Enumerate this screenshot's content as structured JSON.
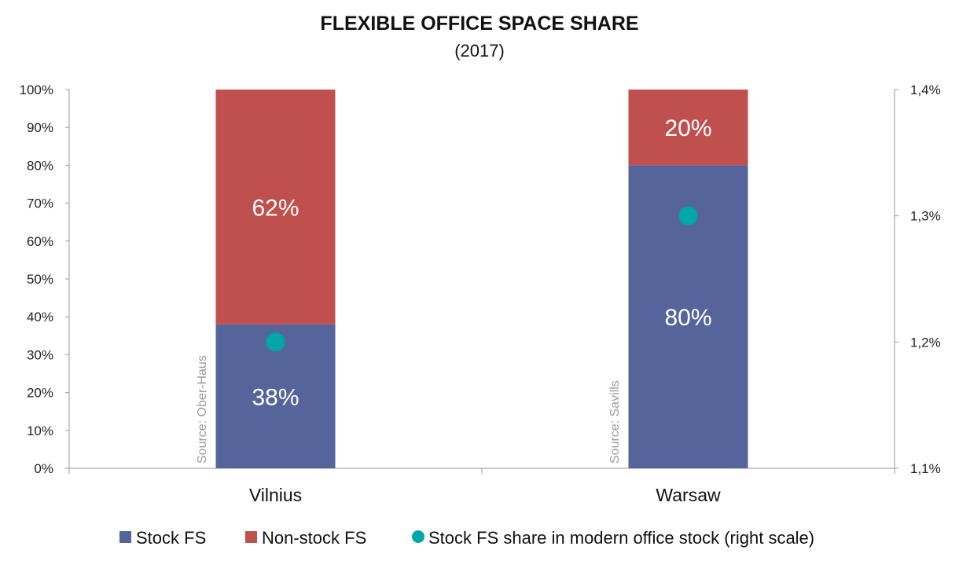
{
  "chart_data": {
    "type": "bar",
    "stacked": true,
    "title": "FLEXIBLE OFFICE SPACE SHARE",
    "subtitle": "(2017)",
    "categories": [
      "Vilnius",
      "Warsaw"
    ],
    "series": [
      {
        "name": "Stock FS",
        "values": [
          38,
          80
        ],
        "labels": [
          "38%",
          "80%"
        ],
        "color": "#55659c"
      },
      {
        "name": "Non-stock FS",
        "values": [
          62,
          20
        ],
        "labels": [
          "62%",
          "20%"
        ],
        "color": "#c0504d"
      }
    ],
    "secondary_series": {
      "name": "Stock FS share in modern office stock (right scale)",
      "type": "scatter",
      "values": [
        1.2,
        1.3
      ],
      "color": "#00a7a8"
    },
    "ylim": [
      0,
      100
    ],
    "yticks": [
      "0%",
      "10%",
      "20%",
      "30%",
      "40%",
      "50%",
      "60%",
      "70%",
      "80%",
      "90%",
      "100%"
    ],
    "y2lim": [
      1.1,
      1.4
    ],
    "y2ticks": [
      "1,1%",
      "1,2%",
      "1,3%",
      "1,4%"
    ],
    "annotations": [
      "Source: Ober-Haus",
      "Source: Savills"
    ],
    "grid": false,
    "legend_position": "bottom"
  }
}
